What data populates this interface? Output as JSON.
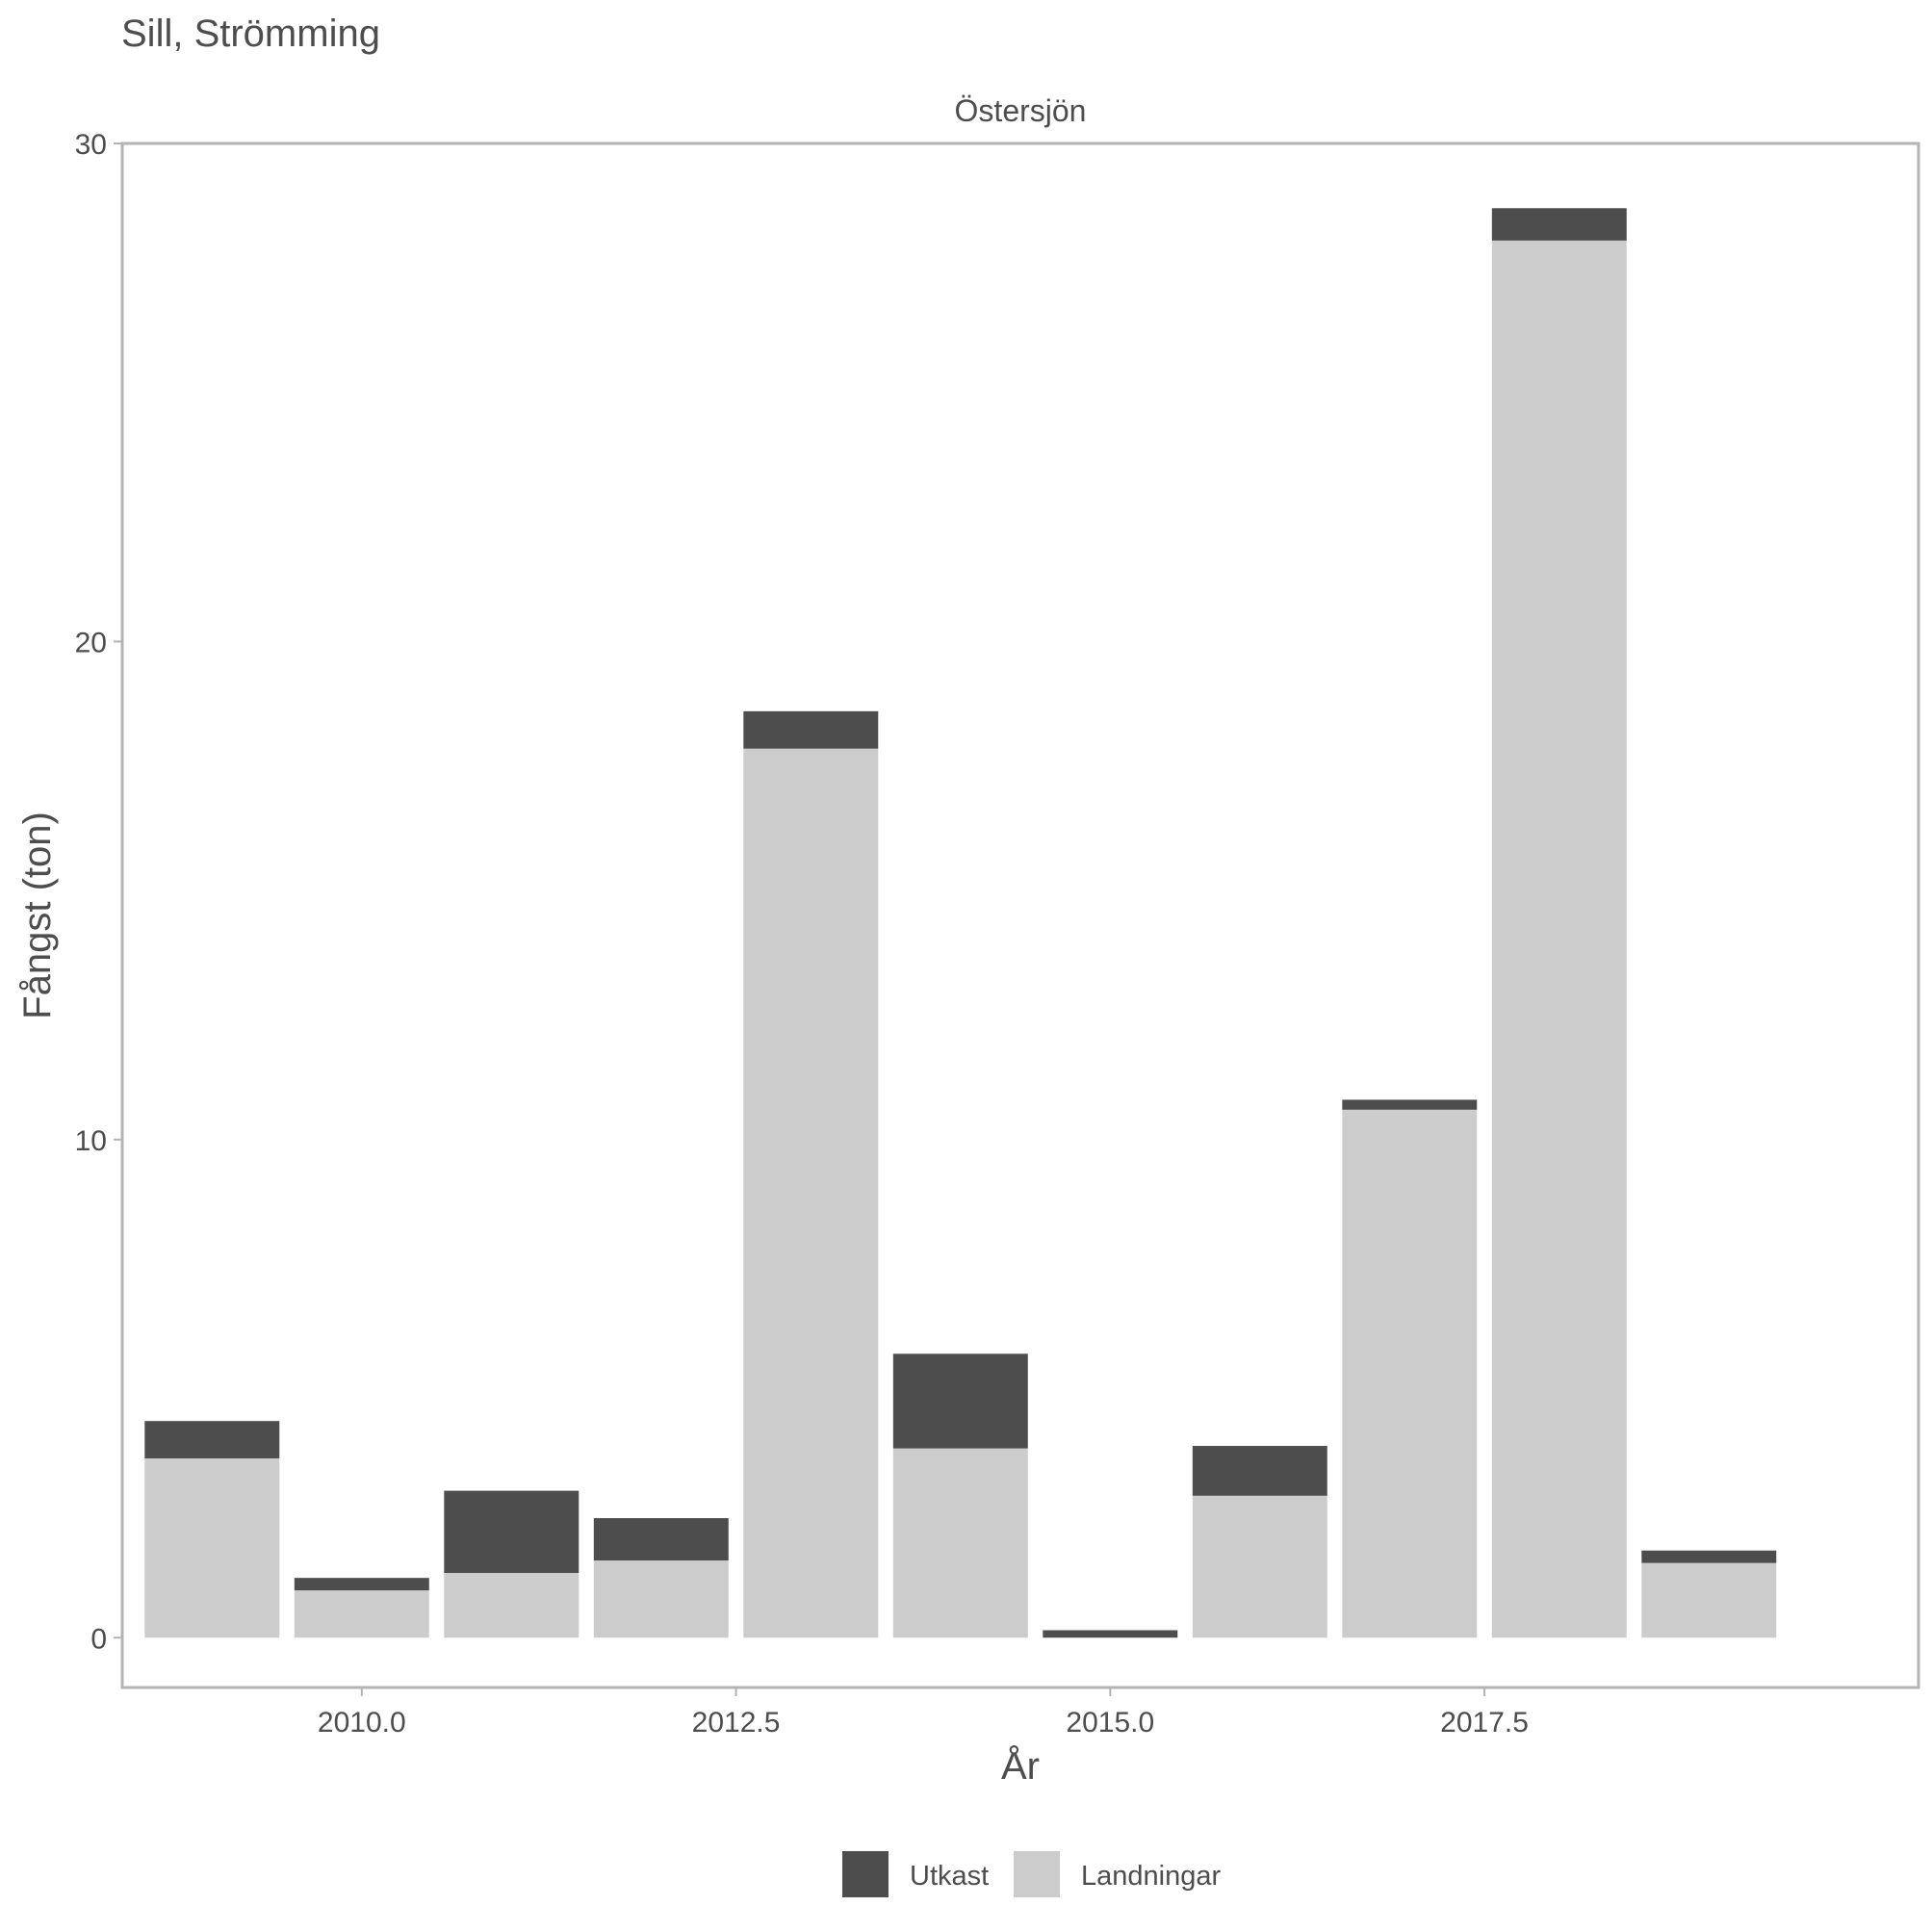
{
  "chart_data": {
    "type": "bar",
    "stacked": true,
    "title": "Sill, Strömming",
    "facet_label": "Östersjön",
    "xlabel": "År",
    "ylabel": "Fångst (ton)",
    "xlim": [
      2008.4,
      2020.4
    ],
    "ylim": [
      -1,
      30
    ],
    "x_ticks": [
      2010.0,
      2012.5,
      2015.0,
      2017.5
    ],
    "x_tick_labels": [
      "2010.0",
      "2012.5",
      "2015.0",
      "2017.5"
    ],
    "y_ticks": [
      0,
      10,
      20,
      30
    ],
    "y_tick_labels": [
      "0",
      "10",
      "20",
      "30"
    ],
    "grid": false,
    "legend_position": "bottom",
    "x": [
      2009,
      2010,
      2011,
      2012,
      2013,
      2014,
      2015,
      2016,
      2017,
      2018,
      2019
    ],
    "series": [
      {
        "name": "Landningar",
        "color": "#cccccc",
        "values": [
          3.6,
          0.95,
          1.3,
          1.55,
          17.85,
          3.8,
          0.0,
          2.85,
          10.6,
          28.05,
          1.5
        ]
      },
      {
        "name": "Utkast",
        "color": "#4d4d4d",
        "values": [
          0.75,
          0.25,
          1.65,
          0.85,
          0.75,
          1.9,
          0.15,
          1.0,
          0.2,
          0.65,
          0.25
        ]
      }
    ],
    "legend_order": [
      "Utkast",
      "Landningar"
    ]
  }
}
